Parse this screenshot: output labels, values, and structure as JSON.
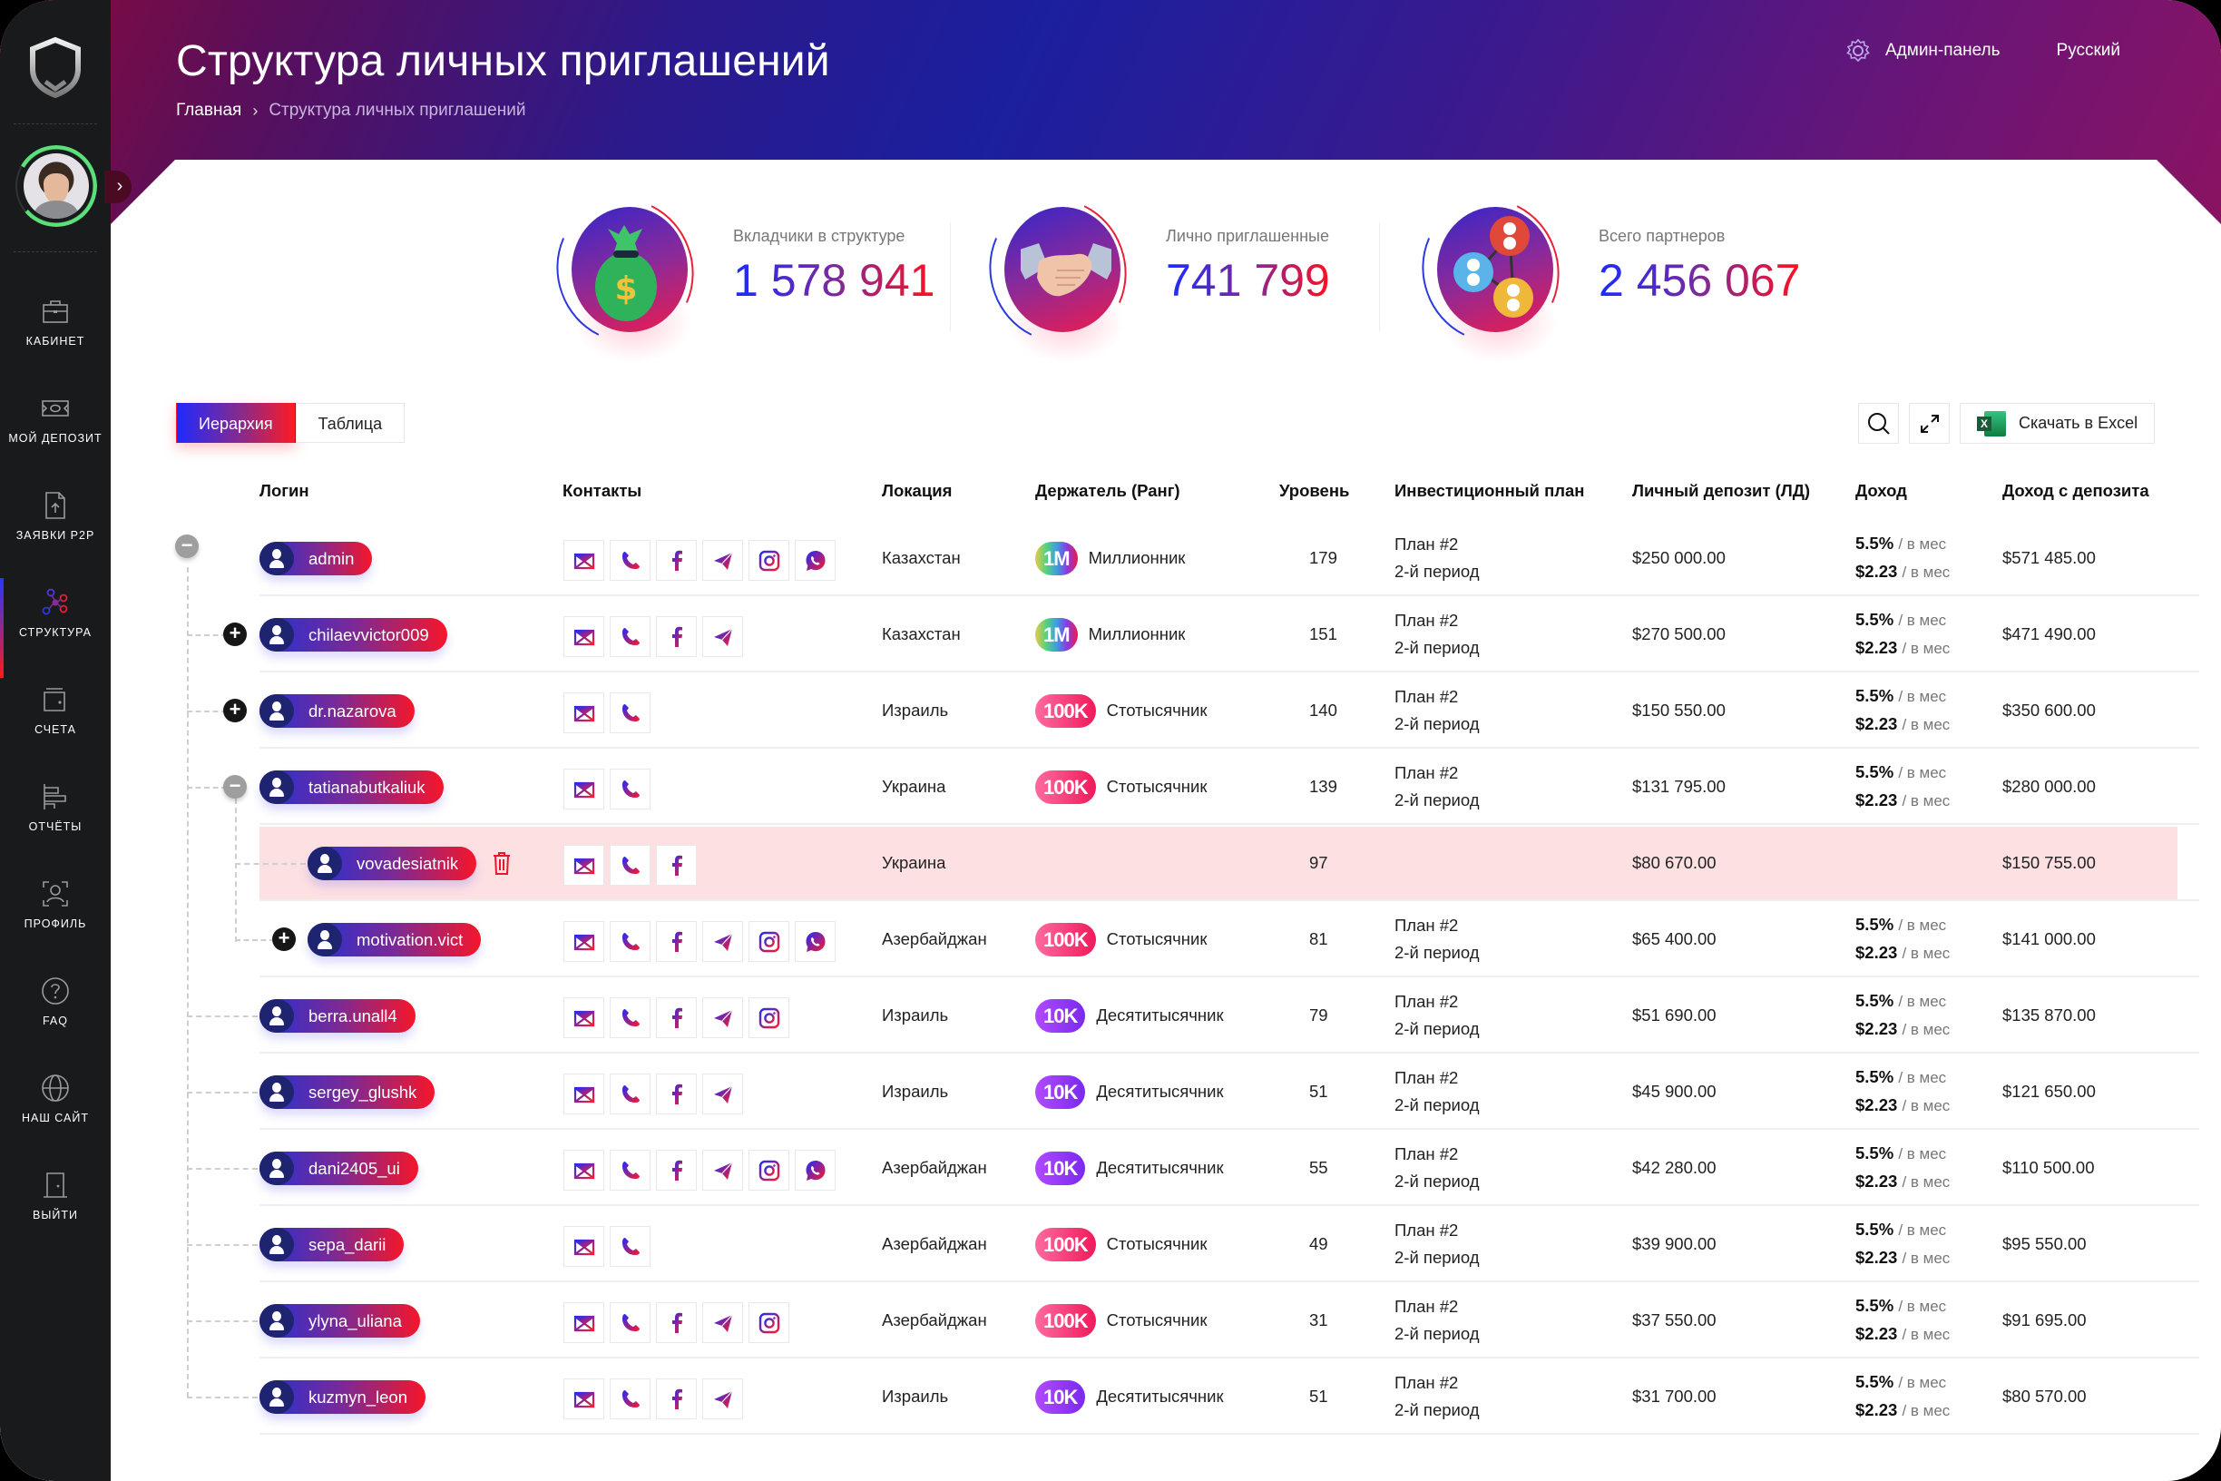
{
  "sidebar": {
    "items": [
      {
        "label": "КАБИНЕТ",
        "icon": "briefcase-icon"
      },
      {
        "label": "МОЙ ДЕПОЗИТ",
        "icon": "banknote-icon"
      },
      {
        "label": "ЗАЯВКИ P2P",
        "icon": "file-upload-icon"
      },
      {
        "label": "СТРУКТУРА",
        "icon": "network-icon",
        "active": true
      },
      {
        "label": "СЧЕТА",
        "icon": "wallet-icon"
      },
      {
        "label": "ОТЧЁТЫ",
        "icon": "bar-chart-icon"
      },
      {
        "label": "ПРОФИЛЬ",
        "icon": "user-scan-icon"
      },
      {
        "label": "FAQ",
        "icon": "question-icon"
      },
      {
        "label": "НАШ САЙТ",
        "icon": "globe-icon"
      },
      {
        "label": "ВЫЙТИ",
        "icon": "door-icon"
      }
    ],
    "expand_glyph": "›"
  },
  "header": {
    "title": "Структура личных приглашений",
    "breadcrumb": {
      "home": "Главная",
      "separator": "›",
      "current": "Структура личных приглашений"
    },
    "admin_panel": "Админ-панель",
    "language": "Русский"
  },
  "stats": [
    {
      "label": "Вкладчики в структуре",
      "value": "1 578 941",
      "icon": "money-bag-icon"
    },
    {
      "label": "Лично приглашенные",
      "value": "741 799",
      "icon": "handshake-icon"
    },
    {
      "label": "Всего партнеров",
      "value": "2 456 067",
      "icon": "partners-network-icon"
    }
  ],
  "view_tabs": [
    {
      "label": "Иерархия",
      "active": true
    },
    {
      "label": "Таблица",
      "active": false
    }
  ],
  "toolbar": {
    "excel_label": "Скачать в Excel",
    "excel_icon_letter": "X"
  },
  "table": {
    "columns": [
      "Логин",
      "Контакты",
      "Локация",
      "Держатель (Ранг)",
      "Уровень",
      "Инвестиционный план",
      "Личный депозит (ЛД)",
      "Доход",
      "Доход с депозита"
    ],
    "per_month": "/ в мес",
    "rows": [
      {
        "login": "admin",
        "depth": 0,
        "toggle": "minus",
        "contacts": [
          "email",
          "phone",
          "facebook",
          "telegram",
          "instagram",
          "whatsapp"
        ],
        "location": "Казахстан",
        "rank_badge": "1M",
        "rank_class": "1m",
        "rank": "Миллионник",
        "level": "179",
        "plan": "План #2",
        "period": "2-й период",
        "deposit": "$250 000.00",
        "income_pct": "5.5%",
        "income_usd": "$2.23",
        "deposit_income": "$571 485.00"
      },
      {
        "login": "chilaevvictor009",
        "depth": 1,
        "toggle": "plus",
        "contacts": [
          "email",
          "phone",
          "facebook",
          "telegram"
        ],
        "location": "Казахстан",
        "rank_badge": "1M",
        "rank_class": "1m",
        "rank": "Миллионник",
        "level": "151",
        "plan": "План #2",
        "period": "2-й период",
        "deposit": "$270 500.00",
        "income_pct": "5.5%",
        "income_usd": "$2.23",
        "deposit_income": "$471 490.00"
      },
      {
        "login": "dr.nazarova",
        "depth": 1,
        "toggle": "plus",
        "contacts": [
          "email",
          "phone"
        ],
        "location": "Израиль",
        "rank_badge": "100K",
        "rank_class": "100k",
        "rank": "Стотысячник",
        "level": "140",
        "plan": "План #2",
        "period": "2-й период",
        "deposit": "$150 550.00",
        "income_pct": "5.5%",
        "income_usd": "$2.23",
        "deposit_income": "$350 600.00"
      },
      {
        "login": "tatianabutkaliuk",
        "depth": 1,
        "toggle": "minus",
        "contacts": [
          "email",
          "phone"
        ],
        "location": "Украина",
        "rank_badge": "100K",
        "rank_class": "100k",
        "rank": "Стотысячник",
        "level": "139",
        "plan": "План #2",
        "period": "2-й период",
        "deposit": "$131 795.00",
        "income_pct": "5.5%",
        "income_usd": "$2.23",
        "deposit_income": "$280 000.00"
      },
      {
        "login": "vovadesiatnik",
        "depth": 2,
        "toggle": null,
        "highlight": true,
        "deletable": true,
        "contacts": [
          "email",
          "phone",
          "facebook"
        ],
        "location": "Украина",
        "rank_badge": "",
        "rank_class": "",
        "rank": "",
        "level": "97",
        "plan": "",
        "period": "",
        "deposit": "$80 670.00",
        "income_pct": "",
        "income_usd": "",
        "deposit_income": "$150 755.00"
      },
      {
        "login": "motivation.vict",
        "depth": 2,
        "toggle": "plus",
        "contacts": [
          "email",
          "phone",
          "facebook",
          "telegram",
          "instagram",
          "whatsapp"
        ],
        "location": "Азербайджан",
        "rank_badge": "100K",
        "rank_class": "100k",
        "rank": "Стотысячник",
        "level": "81",
        "plan": "План #2",
        "period": "2-й период",
        "deposit": "$65 400.00",
        "income_pct": "5.5%",
        "income_usd": "$2.23",
        "deposit_income": "$141 000.00"
      },
      {
        "login": "berra.unall4",
        "depth": 1,
        "toggle": null,
        "contacts": [
          "email",
          "phone",
          "facebook",
          "telegram",
          "instagram"
        ],
        "location": "Израиль",
        "rank_badge": "10K",
        "rank_class": "10k",
        "rank": "Десятитысячник",
        "level": "79",
        "plan": "План #2",
        "period": "2-й период",
        "deposit": "$51 690.00",
        "income_pct": "5.5%",
        "income_usd": "$2.23",
        "deposit_income": "$135 870.00"
      },
      {
        "login": "sergey_glushk",
        "depth": 1,
        "toggle": null,
        "contacts": [
          "email",
          "phone",
          "facebook",
          "telegram"
        ],
        "location": "Израиль",
        "rank_badge": "10K",
        "rank_class": "10k",
        "rank": "Десятитысячник",
        "level": "51",
        "plan": "План #2",
        "period": "2-й период",
        "deposit": "$45 900.00",
        "income_pct": "5.5%",
        "income_usd": "$2.23",
        "deposit_income": "$121 650.00"
      },
      {
        "login": "dani2405_ui",
        "depth": 1,
        "toggle": null,
        "contacts": [
          "email",
          "phone",
          "facebook",
          "telegram",
          "instagram",
          "whatsapp"
        ],
        "location": "Азербайджан",
        "rank_badge": "10K",
        "rank_class": "10k",
        "rank": "Десятитысячник",
        "level": "55",
        "plan": "План #2",
        "period": "2-й период",
        "deposit": "$42 280.00",
        "income_pct": "5.5%",
        "income_usd": "$2.23",
        "deposit_income": "$110 500.00"
      },
      {
        "login": "sepa_darii",
        "depth": 1,
        "toggle": null,
        "contacts": [
          "email",
          "phone"
        ],
        "location": "Азербайджан",
        "rank_badge": "100K",
        "rank_class": "100k",
        "rank": "Стотысячник",
        "level": "49",
        "plan": "План #2",
        "period": "2-й период",
        "deposit": "$39 900.00",
        "income_pct": "5.5%",
        "income_usd": "$2.23",
        "deposit_income": "$95 550.00"
      },
      {
        "login": "ylyna_uliana",
        "depth": 1,
        "toggle": null,
        "contacts": [
          "email",
          "phone",
          "facebook",
          "telegram",
          "instagram"
        ],
        "location": "Азербайджан",
        "rank_badge": "100K",
        "rank_class": "100k",
        "rank": "Стотысячник",
        "level": "31",
        "plan": "План #2",
        "period": "2-й период",
        "deposit": "$37 550.00",
        "income_pct": "5.5%",
        "income_usd": "$2.23",
        "deposit_income": "$91 695.00"
      },
      {
        "login": "kuzmyn_leon",
        "depth": 1,
        "toggle": null,
        "contacts": [
          "email",
          "phone",
          "facebook",
          "telegram"
        ],
        "location": "Израиль",
        "rank_badge": "10K",
        "rank_class": "10k",
        "rank": "Десятитысячник",
        "level": "51",
        "plan": "План #2",
        "period": "2-й период",
        "deposit": "$31 700.00",
        "income_pct": "5.5%",
        "income_usd": "$2.23",
        "deposit_income": "$80 570.00"
      }
    ]
  },
  "colors": {
    "accent_blue": "#1e2aff",
    "accent_red": "#ff1a24",
    "highlight_row": "#fde0e2",
    "sidebar_bg": "#181a1b",
    "progress_green": "#5ce07a"
  }
}
